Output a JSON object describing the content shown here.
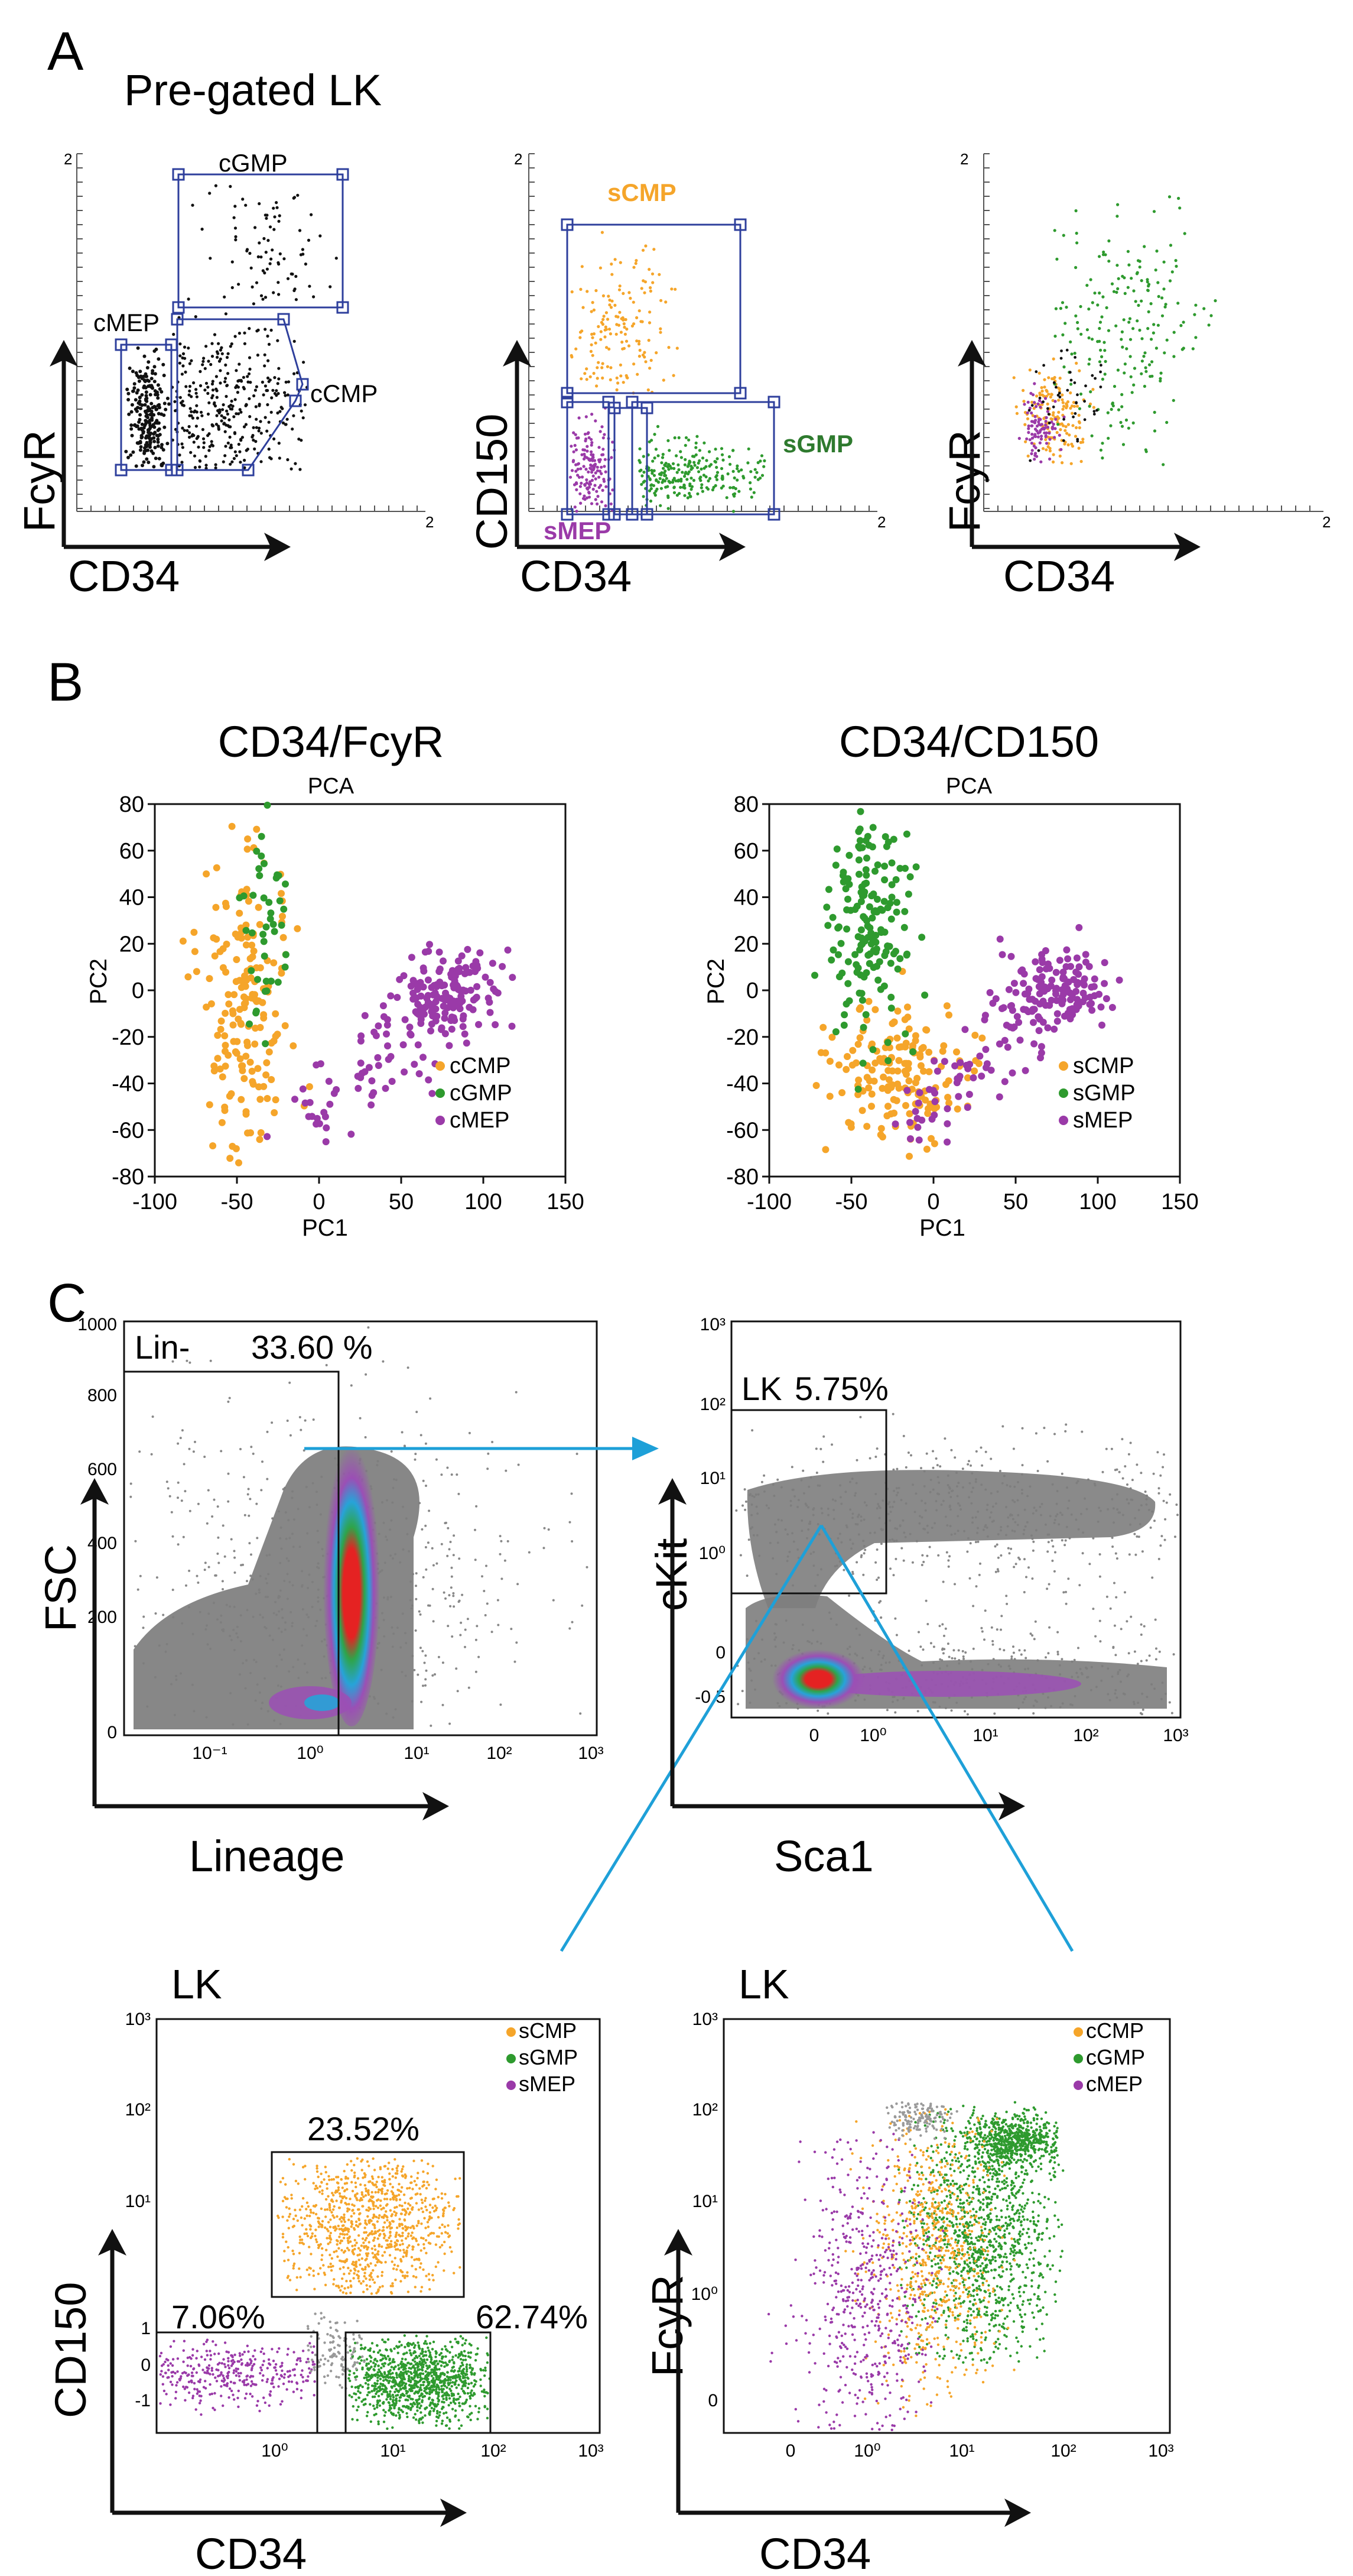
{
  "figure": {
    "panel_labels": {
      "A": "A",
      "B": "B",
      "C": "C"
    },
    "colors": {
      "cmp": "#f5a52a",
      "gmp": "#2e9a2e",
      "mep": "#9a3aa8",
      "gate": "#2e3f9c",
      "arrow": "#1ea0d8",
      "black": "#111111",
      "density_gray": "#8a8a8a"
    }
  },
  "panelA": {
    "title": "Pre-gated LK",
    "plot1": {
      "xlabel": "CD34",
      "ylabel": "FcyR",
      "corner_tick": "2",
      "gates": [
        {
          "name": "cGMP"
        },
        {
          "name": "cMEP"
        },
        {
          "name": "cCMP"
        }
      ]
    },
    "plot2": {
      "xlabel": "CD34",
      "ylabel": "CD150",
      "corner_tick": "2",
      "gates": [
        {
          "name": "sCMP"
        },
        {
          "name": "sGMP"
        },
        {
          "name": "sMEP"
        }
      ]
    },
    "plot3": {
      "xlabel": "CD34",
      "ylabel": "FcyR",
      "corner_tick": "2"
    }
  },
  "chart_data": [
    {
      "type": "scatter",
      "title": "CD34/FcyR",
      "subtitle": "PCA",
      "xlabel": "PC1",
      "ylabel": "PC2",
      "xlim": [
        -100,
        150
      ],
      "ylim": [
        -80,
        80
      ],
      "xticks": [
        "-100",
        "-50",
        "0",
        "50",
        "100",
        "150"
      ],
      "yticks": [
        "80",
        "60",
        "40",
        "20",
        "0",
        "-20",
        "-40",
        "-60",
        "-80"
      ],
      "legend": [
        "cCMP",
        "cGMP",
        "cMEP"
      ],
      "series": [
        {
          "name": "cCMP",
          "cloud": {
            "center": [
              -45,
              -10
            ],
            "spread": [
              14,
              30
            ],
            "n": 180
          }
        },
        {
          "name": "cGMP",
          "cloud": {
            "center": [
              -35,
              35
            ],
            "spread": [
              10,
              25
            ],
            "n": 45
          }
        },
        {
          "name": "cMEP",
          "cloud": {
            "center": [
              80,
              0
            ],
            "spread": [
              15,
              9
            ],
            "n": 220
          }
        }
      ]
    },
    {
      "type": "scatter",
      "title": "CD34/CD150",
      "subtitle": "PCA",
      "xlabel": "PC1",
      "ylabel": "PC2",
      "xlim": [
        -100,
        150
      ],
      "ylim": [
        -80,
        80
      ],
      "xticks": [
        "-100",
        "-50",
        "0",
        "50",
        "100",
        "150"
      ],
      "yticks": [
        "80",
        "60",
        "40",
        "20",
        "0",
        "-20",
        "-40",
        "-60",
        "-80"
      ],
      "legend": [
        "sCMP",
        "sGMP",
        "sMEP"
      ],
      "series": [
        {
          "name": "sCMP",
          "cloud": {
            "center": [
              -20,
              -35
            ],
            "spread": [
              20,
              15
            ],
            "n": 170
          }
        },
        {
          "name": "sGMP",
          "cloud": {
            "center": [
              -40,
              30
            ],
            "spread": [
              12,
              25
            ],
            "n": 170
          }
        },
        {
          "name": "sMEP",
          "cloud": {
            "center": [
              80,
              0
            ],
            "spread": [
              15,
              9
            ],
            "n": 200
          }
        }
      ]
    },
    {
      "type": "scatter",
      "title": "Lin-",
      "xlabel": "Lineage",
      "ylabel": "FSC",
      "gate": {
        "name": "Lin-",
        "percent": "33.60 %"
      },
      "xticks": [
        "10⁻¹",
        "10⁰",
        "10¹",
        "10²",
        "10³"
      ],
      "yticks": [
        "1000",
        "800",
        "600",
        "400",
        "200",
        "0"
      ]
    },
    {
      "type": "scatter",
      "title": "LK",
      "xlabel": "Sca1",
      "ylabel": "cKit",
      "gate": {
        "name": "LK",
        "percent": "5.75%"
      },
      "xticks": [
        "0",
        "10⁰",
        "10¹",
        "10²",
        "10³"
      ],
      "yticks": [
        "10³",
        "10²",
        "10¹",
        "10⁰",
        "0",
        "-0.5"
      ]
    },
    {
      "type": "scatter",
      "title": "LK",
      "xlabel": "CD34",
      "ylabel": "CD150",
      "legend": [
        "sCMP",
        "sGMP",
        "sMEP"
      ],
      "gates": [
        {
          "name": "sCMP",
          "percent": "23.52%"
        },
        {
          "name": "sMEP",
          "percent": "7.06%"
        },
        {
          "name": "sGMP",
          "percent": "62.74%"
        }
      ],
      "xticks": [
        "10⁰",
        "10¹",
        "10²",
        "10³"
      ],
      "yticks": [
        "10³",
        "10²",
        "10¹",
        "1",
        "0",
        "-1"
      ]
    },
    {
      "type": "scatter",
      "title": "LK",
      "xlabel": "CD34",
      "ylabel": "FcyR",
      "legend": [
        "cCMP",
        "cGMP",
        "cMEP"
      ],
      "xticks": [
        "0",
        "10⁰",
        "10¹",
        "10²",
        "10³"
      ],
      "yticks": [
        "10³",
        "10²",
        "10¹",
        "10⁰",
        "0"
      ]
    }
  ]
}
